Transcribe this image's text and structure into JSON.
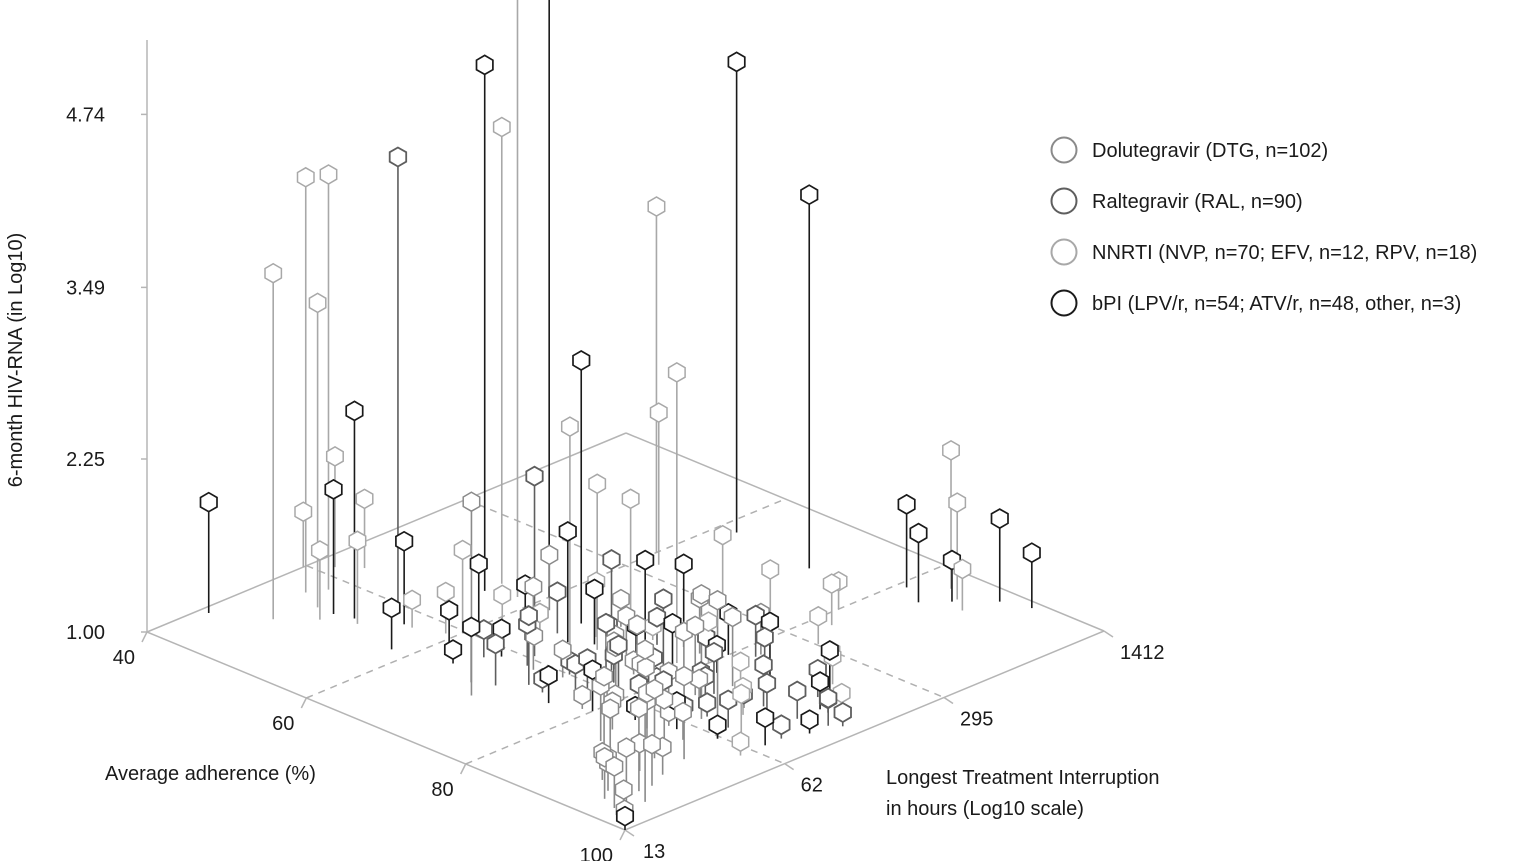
{
  "chart_data": {
    "type": "scatter",
    "subtype": "3d-lollipop",
    "zlabel": "6-month HIV-RNA (in Log10)",
    "xlabel": "Average adherence (%)",
    "ylabel_line1": "Longest Treatment Interruption",
    "ylabel_line2": "in hours (Log10 scale)",
    "z_ticks": [
      "1.00",
      "2.25",
      "3.49",
      "4.74"
    ],
    "z_tick_values": [
      1.0,
      2.25,
      3.49,
      4.74
    ],
    "zlim": [
      1.0,
      5.6
    ],
    "x_ticks": [
      "40",
      "60",
      "80",
      "100"
    ],
    "x_tick_values": [
      40,
      60,
      80,
      100
    ],
    "xlim": [
      40,
      100
    ],
    "y_ticks": [
      "13",
      "62",
      "295",
      "1412"
    ],
    "y_tick_values": [
      13,
      62,
      295,
      1412
    ],
    "y_scale": "log",
    "ylim": [
      13,
      1412
    ],
    "grid": "dashed floor gridlines",
    "legend_position": "right",
    "series": [
      {
        "name": "Dolutegravir (DTG, n=102)",
        "color": "#8a8a8a",
        "stroke_width": 1.5,
        "points": [
          [
            97,
            20,
            2.1
          ],
          [
            93,
            40,
            1.6
          ],
          [
            88,
            70,
            1.9
          ],
          [
            85,
            120,
            1.5
          ],
          [
            82,
            200,
            1.3
          ],
          [
            95,
            25,
            1.3
          ],
          [
            90,
            50,
            1.2
          ],
          [
            84,
            90,
            1.5
          ],
          [
            78,
            150,
            1.4
          ],
          [
            92,
            60,
            2.0
          ],
          [
            96,
            18,
            1.4
          ],
          [
            94,
            30,
            1.2
          ],
          [
            89,
            45,
            1.3
          ],
          [
            86,
            80,
            1.2
          ],
          [
            80,
            110,
            1.3
          ],
          [
            91,
            35,
            1.5
          ],
          [
            87,
            55,
            1.1
          ],
          [
            83,
            75,
            1.2
          ],
          [
            76,
            95,
            1.3
          ],
          [
            70,
            30,
            2.4
          ],
          [
            98,
            15,
            1.2
          ],
          [
            95,
            22,
            1.6
          ],
          [
            92,
            28,
            1.2
          ],
          [
            89,
            38,
            1.4
          ],
          [
            86,
            48,
            1.2
          ],
          [
            83,
            60,
            1.3
          ],
          [
            80,
            72,
            1.2
          ],
          [
            77,
            85,
            1.1
          ],
          [
            74,
            100,
            1.3
          ],
          [
            99,
            14,
            1.1
          ],
          [
            96,
            16,
            1.3
          ],
          [
            93,
            19,
            1.2
          ],
          [
            90,
            24,
            1.1
          ],
          [
            87,
            31,
            1.3
          ],
          [
            84,
            40,
            1.2
          ],
          [
            81,
            52,
            1.1
          ],
          [
            78,
            66,
            1.3
          ],
          [
            75,
            82,
            1.2
          ],
          [
            72,
            105,
            1.1
          ],
          [
            69,
            140,
            1.2
          ],
          [
            70,
            55,
            1.6
          ],
          [
            66,
            80,
            1.2
          ],
          [
            62,
            120,
            1.4
          ],
          [
            88,
            27,
            1.6
          ],
          [
            85,
            33,
            1.4
          ],
          [
            79,
            44,
            1.1
          ],
          [
            73,
            58,
            1.2
          ],
          [
            67,
            70,
            1.1
          ],
          [
            94,
            17,
            1.3
          ],
          [
            91,
            21,
            1.2
          ]
        ]
      },
      {
        "name": "Raltegravir (RAL, n=90)",
        "color": "#5e5e5e",
        "stroke_width": 1.8,
        "points": [
          [
            53,
            55,
            4.3
          ],
          [
            68,
            65,
            2.3
          ],
          [
            75,
            80,
            1.8
          ],
          [
            80,
            90,
            1.6
          ],
          [
            85,
            100,
            1.3
          ],
          [
            88,
            130,
            1.4
          ],
          [
            92,
            160,
            1.2
          ],
          [
            78,
            60,
            1.5
          ],
          [
            82,
            70,
            1.3
          ],
          [
            86,
            85,
            1.2
          ],
          [
            90,
            110,
            1.3
          ],
          [
            95,
            140,
            1.1
          ],
          [
            72,
            45,
            1.5
          ],
          [
            76,
            52,
            1.2
          ],
          [
            80,
            58,
            1.4
          ],
          [
            84,
            66,
            1.2
          ],
          [
            88,
            74,
            1.1
          ],
          [
            93,
            90,
            1.3
          ],
          [
            97,
            120,
            1.2
          ],
          [
            70,
            38,
            1.3
          ],
          [
            74,
            44,
            1.1
          ],
          [
            78,
            50,
            1.3
          ],
          [
            83,
            56,
            1.2
          ],
          [
            87,
            64,
            1.1
          ],
          [
            91,
            72,
            1.2
          ],
          [
            96,
            82,
            1.1
          ],
          [
            65,
            50,
            1.2
          ],
          [
            69,
            56,
            1.3
          ],
          [
            73,
            62,
            1.1
          ],
          [
            77,
            70,
            1.2
          ],
          [
            81,
            78,
            1.1
          ],
          [
            85,
            88,
            1.2
          ],
          [
            89,
            98,
            1.1
          ],
          [
            94,
            112,
            1.2
          ],
          [
            98,
            128,
            1.1
          ],
          [
            66,
            95,
            1.3
          ],
          [
            70,
            115,
            1.1
          ],
          [
            74,
            135,
            1.2
          ],
          [
            78,
            160,
            1.1
          ],
          [
            82,
            190,
            1.3
          ]
        ]
      },
      {
        "name": "NNRTI (NVP, n=70; EFV, n=12, RPV, n=18)",
        "color": "#a8a8a8",
        "stroke_width": 1.5,
        "points": [
          [
            44,
            45,
            4.0
          ],
          [
            45,
            52,
            4.0
          ],
          [
            46,
            28,
            3.5
          ],
          [
            47,
            40,
            3.2
          ],
          [
            49,
            35,
            1.5
          ],
          [
            55,
            130,
            4.3
          ],
          [
            58,
            120,
            5.5
          ],
          [
            60,
            400,
            3.5
          ],
          [
            62,
            350,
            2.1
          ],
          [
            67,
            180,
            1.8
          ],
          [
            69,
            85,
            2.6
          ],
          [
            71,
            95,
            2.2
          ],
          [
            84,
            1100,
            2.0
          ],
          [
            86,
            1000,
            1.7
          ],
          [
            88,
            900,
            1.3
          ],
          [
            40,
            60,
            1.4
          ],
          [
            42,
            70,
            1.8
          ],
          [
            44,
            80,
            1.5
          ],
          [
            78,
            120,
            3.1
          ],
          [
            80,
            140,
            1.3
          ],
          [
            86,
            120,
            1.2
          ],
          [
            90,
            90,
            1.2
          ],
          [
            93,
            70,
            1.3
          ],
          [
            96,
            55,
            1.1
          ],
          [
            82,
            400,
            1.3
          ],
          [
            84,
            300,
            1.2
          ],
          [
            88,
            250,
            1.1
          ],
          [
            91,
            200,
            1.2
          ],
          [
            95,
            160,
            1.1
          ],
          [
            72,
            300,
            1.5
          ],
          [
            76,
            350,
            1.3
          ],
          [
            80,
            500,
            1.2
          ],
          [
            60,
            60,
            1.6
          ],
          [
            63,
            70,
            1.3
          ],
          [
            66,
            80,
            1.2
          ],
          [
            69,
            110,
            1.4
          ],
          [
            73,
            140,
            1.1
          ],
          [
            52,
            40,
            1.6
          ],
          [
            56,
            50,
            1.2
          ],
          [
            59,
            55,
            1.3
          ]
        ]
      },
      {
        "name": "bPI (LPV/r, n=54; ATV/r, n=48, other, n=3)",
        "color": "#1a1a1a",
        "stroke_width": 1.7,
        "points": [
          [
            41,
            22,
            1.8
          ],
          [
            55,
            110,
            4.8
          ],
          [
            60,
            140,
            5.4
          ],
          [
            62,
            750,
            4.4
          ],
          [
            66,
            120,
            2.9
          ],
          [
            72,
            700,
            3.7
          ],
          [
            73,
            130,
            1.6
          ],
          [
            76,
            150,
            1.6
          ],
          [
            49,
            40,
            1.9
          ],
          [
            51,
            42,
            2.5
          ],
          [
            55,
            50,
            1.6
          ],
          [
            61,
            65,
            1.5
          ],
          [
            65,
            75,
            1.4
          ],
          [
            68,
            90,
            1.8
          ],
          [
            81,
            900,
            1.6
          ],
          [
            84,
            800,
            1.5
          ],
          [
            86,
            950,
            1.3
          ],
          [
            89,
            1200,
            1.6
          ],
          [
            92,
            1300,
            1.4
          ],
          [
            100,
            13,
            1.1
          ],
          [
            92,
            180,
            1.3
          ],
          [
            86,
            160,
            1.4
          ],
          [
            80,
            170,
            1.3
          ],
          [
            70,
            100,
            1.4
          ],
          [
            74,
            110,
            1.2
          ],
          [
            78,
            115,
            1.3
          ],
          [
            82,
            130,
            1.2
          ],
          [
            94,
            140,
            1.2
          ],
          [
            97,
            100,
            1.1
          ],
          [
            76,
            40,
            1.2
          ],
          [
            80,
            45,
            1.3
          ],
          [
            84,
            50,
            1.1
          ],
          [
            88,
            55,
            1.2
          ],
          [
            92,
            60,
            1.1
          ],
          [
            96,
            70,
            1.2
          ],
          [
            62,
            45,
            1.3
          ],
          [
            66,
            55,
            1.2
          ],
          [
            68,
            35,
            1.4
          ],
          [
            58,
            35,
            1.3
          ],
          [
            64,
            40,
            1.1
          ]
        ]
      }
    ]
  }
}
